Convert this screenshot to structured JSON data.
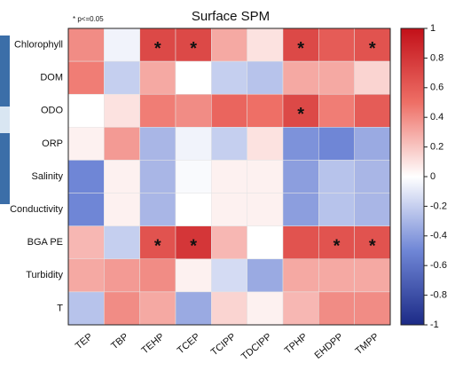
{
  "chart_data": {
    "type": "heatmap",
    "title": "Surface SPM",
    "annotation": "* p<=0.05",
    "rows": [
      "Chlorophyll",
      "DOM",
      "ODO",
      "ORP",
      "Salinity",
      "Conductivity",
      "BGA PE",
      "Turbidity",
      "T"
    ],
    "columns": [
      "TEP",
      "TBP",
      "TEHP",
      "TCEP",
      "TCIPP",
      "TDCIPP",
      "TPHP",
      "EHDPP",
      "TMPP"
    ],
    "values": [
      [
        0.4,
        -0.05,
        0.7,
        0.7,
        0.3,
        0.1,
        0.7,
        0.6,
        0.65
      ],
      [
        0.45,
        -0.2,
        0.3,
        0.0,
        -0.2,
        -0.25,
        0.3,
        0.3,
        0.15
      ],
      [
        0.0,
        0.1,
        0.45,
        0.4,
        0.55,
        0.5,
        0.7,
        0.45,
        0.6
      ],
      [
        0.05,
        0.35,
        -0.3,
        -0.05,
        -0.2,
        0.1,
        -0.45,
        -0.5,
        -0.35
      ],
      [
        -0.5,
        0.05,
        -0.3,
        -0.02,
        0.05,
        0.05,
        -0.4,
        -0.25,
        -0.3
      ],
      [
        -0.5,
        0.05,
        -0.3,
        0.0,
        0.05,
        0.05,
        -0.4,
        -0.25,
        -0.3
      ],
      [
        0.25,
        -0.2,
        0.65,
        0.8,
        0.25,
        0.0,
        0.65,
        0.65,
        0.65
      ],
      [
        0.3,
        0.35,
        0.4,
        0.05,
        -0.15,
        -0.35,
        0.3,
        0.3,
        0.3
      ],
      [
        -0.25,
        0.4,
        0.3,
        -0.35,
        0.15,
        0.05,
        0.25,
        0.4,
        0.4
      ]
    ],
    "significance_marker": "*",
    "significant": [
      [
        0,
        2
      ],
      [
        0,
        3
      ],
      [
        0,
        6
      ],
      [
        0,
        8
      ],
      [
        2,
        6
      ],
      [
        6,
        2
      ],
      [
        6,
        3
      ],
      [
        6,
        7
      ],
      [
        6,
        8
      ]
    ],
    "colorscale": [
      "#1c2a86",
      "#6f86d6",
      "#ffffff",
      "#ee6f66",
      "#c21019"
    ],
    "clim": [
      -1,
      1
    ],
    "cticks": [
      1,
      0.8,
      0.6,
      0.4,
      0.2,
      0,
      -0.2,
      -0.4,
      -0.6,
      -0.8,
      -1
    ]
  }
}
